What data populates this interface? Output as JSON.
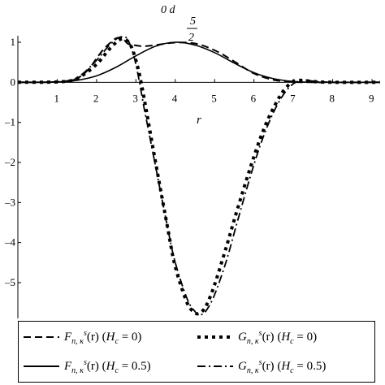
{
  "chart_data": {
    "type": "line",
    "title": "0 d 5/2",
    "title_parts": {
      "prefix": "0 d",
      "num": "5",
      "den": "2"
    },
    "xlabel": "r",
    "ylabel": "",
    "xlim": [
      0,
      9.2
    ],
    "ylim": [
      -5.9,
      1.2
    ],
    "x_ticks": [
      1,
      2,
      3,
      4,
      5,
      6,
      7,
      8,
      9
    ],
    "y_ticks": [
      1,
      0,
      -1,
      -2,
      -3,
      -4,
      -5
    ],
    "legend_position": "bottom",
    "series": [
      {
        "name": "F n,κ s (r) (H c = 0)",
        "style": "dash",
        "color": "#000000",
        "x": [
          0,
          1.0,
          1.5,
          1.8,
          2.0,
          2.2,
          2.4,
          2.5,
          2.6,
          2.7,
          2.8,
          3.0,
          3.2,
          3.5,
          4.0,
          4.5,
          5.0,
          5.5,
          6.0,
          6.5,
          7.0,
          7.5,
          9.2
        ],
        "y": [
          0,
          0.01,
          0.1,
          0.33,
          0.6,
          0.85,
          1.03,
          1.1,
          1.11,
          1.06,
          0.96,
          0.92,
          0.9,
          0.93,
          0.99,
          0.97,
          0.8,
          0.52,
          0.22,
          0.06,
          0.01,
          0,
          0
        ]
      },
      {
        "name": "G n,κ s (r) (H c = 0)",
        "style": "dot",
        "color": "#000000",
        "x": [
          0,
          1.2,
          1.6,
          2.0,
          2.3,
          2.5,
          2.6,
          2.7,
          2.8,
          2.9,
          3.0,
          3.1,
          3.2,
          3.3,
          3.5,
          3.8,
          4.0,
          4.3,
          4.5,
          4.6,
          4.7,
          4.8,
          5.0,
          5.3,
          5.6,
          6.0,
          6.3,
          6.6,
          6.8,
          7.0,
          7.2,
          7.5,
          8.0,
          9.2
        ],
        "y": [
          0,
          0.02,
          0.15,
          0.45,
          0.8,
          1.0,
          1.07,
          1.08,
          1.02,
          0.85,
          0.55,
          0.15,
          -0.35,
          -0.9,
          -2.0,
          -3.6,
          -4.6,
          -5.5,
          -5.75,
          -5.77,
          -5.7,
          -5.55,
          -5.05,
          -4.1,
          -3.1,
          -1.85,
          -1.05,
          -0.45,
          -0.15,
          0.02,
          0.05,
          0.02,
          0,
          0
        ]
      },
      {
        "name": "F n,κ s (r) (H c = 0.5)",
        "style": "solid",
        "color": "#000000",
        "x": [
          0,
          1.0,
          1.5,
          2.0,
          2.5,
          3.0,
          3.5,
          4.0,
          4.5,
          5.0,
          5.5,
          6.0,
          6.5,
          7.0,
          7.5,
          8.0,
          9.2
        ],
        "y": [
          0,
          0.01,
          0.05,
          0.16,
          0.38,
          0.66,
          0.9,
          1.0,
          0.93,
          0.74,
          0.48,
          0.24,
          0.09,
          0.02,
          0,
          0,
          0
        ]
      },
      {
        "name": "G n,κ s (r) (H c = 0.5)",
        "style": "dashdot",
        "color": "#000000",
        "x": [
          0,
          1.2,
          1.6,
          2.0,
          2.3,
          2.5,
          2.6,
          2.7,
          2.75,
          2.8,
          2.9,
          3.0,
          3.1,
          3.2,
          3.3,
          3.5,
          3.8,
          4.0,
          4.3,
          4.5,
          4.6,
          4.7,
          4.8,
          5.0,
          5.3,
          5.6,
          6.0,
          6.3,
          6.6,
          6.9,
          7.2,
          7.5,
          8.0,
          9.2
        ],
        "y": [
          0,
          0.02,
          0.18,
          0.55,
          0.9,
          1.08,
          1.13,
          1.14,
          1.12,
          1.05,
          0.82,
          0.45,
          -0.05,
          -0.6,
          -1.1,
          -2.1,
          -3.6,
          -4.5,
          -5.4,
          -5.72,
          -5.8,
          -5.78,
          -5.68,
          -5.3,
          -4.45,
          -3.4,
          -2.05,
          -1.2,
          -0.55,
          -0.12,
          0.05,
          0.03,
          0,
          0
        ]
      }
    ]
  },
  "legend": {
    "f0": {
      "sym": "F",
      "sub": "n, κ",
      "sup": "s",
      "arg": "(r)",
      "hc": "H",
      "hcsub": "c",
      "val": "= 0"
    },
    "g0": {
      "sym": "G",
      "sub": "n, κ",
      "sup": "s",
      "arg": "(r)",
      "hc": "H",
      "hcsub": "c",
      "val": "= 0"
    },
    "f5": {
      "sym": "F",
      "sub": "n, κ",
      "sup": "s",
      "arg": "(r)",
      "hc": "H",
      "hcsub": "c",
      "val": "= 0.5"
    },
    "g5": {
      "sym": "G",
      "sub": "n, κ",
      "sup": "s",
      "arg": "(r)",
      "hc": "H",
      "hcsub": "c",
      "val": "= 0.5"
    }
  }
}
